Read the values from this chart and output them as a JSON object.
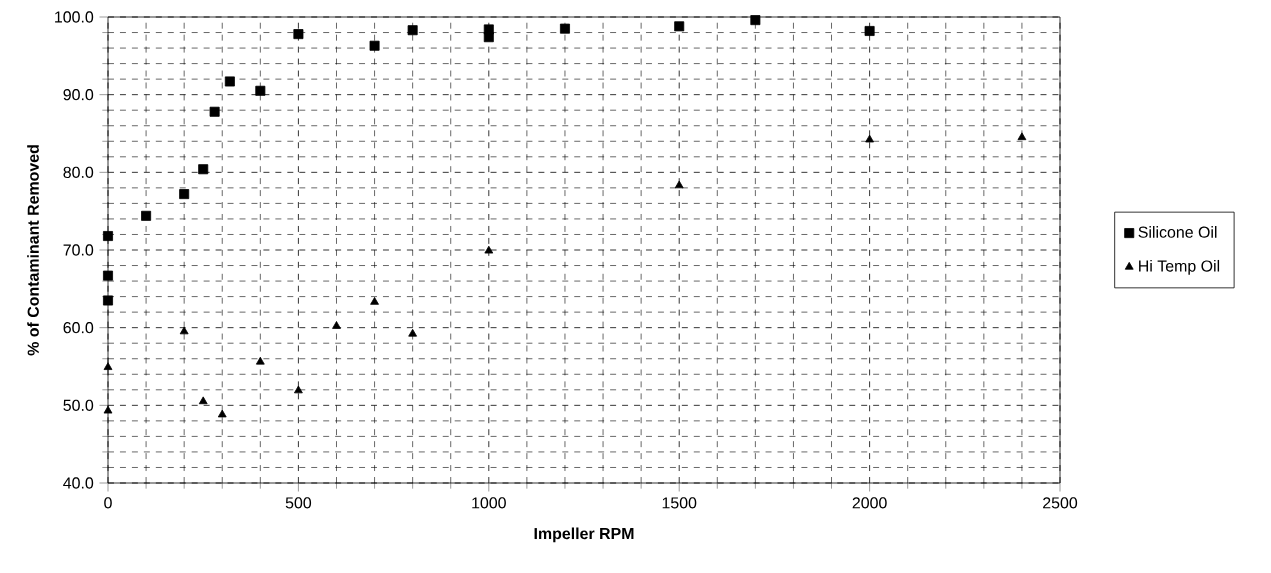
{
  "chart_data": {
    "type": "scatter",
    "xlabel": "Impeller RPM",
    "ylabel": "% of Contaminant Removed",
    "xlim": [
      0,
      2500
    ],
    "xticks": [
      0,
      500,
      1000,
      1500,
      2000,
      2500
    ],
    "ylim": [
      40,
      100
    ],
    "yticks": [
      {
        "value": 40,
        "label": "40.0"
      },
      {
        "value": 50,
        "label": "50.0"
      },
      {
        "value": 60,
        "label": "60.0"
      },
      {
        "value": 70,
        "label": "70.0"
      },
      {
        "value": 80,
        "label": "80.0"
      },
      {
        "value": 90,
        "label": "90.0"
      },
      {
        "value": 100,
        "label": "100.0"
      }
    ],
    "grid": true,
    "legend": "right",
    "line_style": "dashed",
    "series": [
      {
        "name": "Silicone Oil",
        "color": "#000000",
        "marker": "square",
        "x": [
          0,
          0,
          0,
          100,
          200,
          250,
          280,
          320,
          400,
          500,
          700,
          800,
          1000,
          1000,
          1200,
          1500,
          1700,
          2000
        ],
        "values": [
          71.8,
          66.7,
          63.5,
          74.4,
          77.2,
          80.4,
          87.8,
          91.7,
          90.5,
          97.8,
          96.3,
          98.3,
          98.4,
          97.4,
          98.5,
          98.8,
          99.6,
          98.2
        ]
      },
      {
        "name": "Hi Temp Oil",
        "color": "#000000",
        "marker": "triangle",
        "x": [
          0,
          0,
          200,
          250,
          300,
          400,
          500,
          600,
          700,
          800,
          1000,
          1500,
          2000,
          2400
        ],
        "values": [
          54.9,
          49.3,
          59.5,
          50.5,
          48.8,
          55.6,
          51.9,
          60.2,
          63.3,
          59.2,
          69.9,
          78.3,
          84.2,
          84.5
        ]
      }
    ]
  }
}
